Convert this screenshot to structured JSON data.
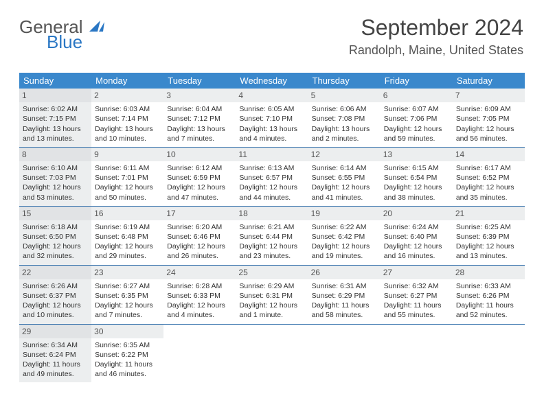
{
  "logo": {
    "line1": "General",
    "line2": "Blue"
  },
  "title": {
    "month": "September 2024",
    "location": "Randolph, Maine, United States"
  },
  "colors": {
    "header_bg": "#3a88cc",
    "week_border": "#2a6aa8",
    "sunday_bg": "#eceeef",
    "daynum_bg": "#eceeef",
    "text": "#333333",
    "title_color": "#444444",
    "logo_blue": "#2a77c4"
  },
  "font_family": "Arial",
  "weekdays": [
    "Sunday",
    "Monday",
    "Tuesday",
    "Wednesday",
    "Thursday",
    "Friday",
    "Saturday"
  ],
  "weeks": [
    [
      {
        "n": "1",
        "sr": "6:02 AM",
        "ss": "7:15 PM",
        "dl": "13 hours and 13 minutes."
      },
      {
        "n": "2",
        "sr": "6:03 AM",
        "ss": "7:14 PM",
        "dl": "13 hours and 10 minutes."
      },
      {
        "n": "3",
        "sr": "6:04 AM",
        "ss": "7:12 PM",
        "dl": "13 hours and 7 minutes."
      },
      {
        "n": "4",
        "sr": "6:05 AM",
        "ss": "7:10 PM",
        "dl": "13 hours and 4 minutes."
      },
      {
        "n": "5",
        "sr": "6:06 AM",
        "ss": "7:08 PM",
        "dl": "13 hours and 2 minutes."
      },
      {
        "n": "6",
        "sr": "6:07 AM",
        "ss": "7:06 PM",
        "dl": "12 hours and 59 minutes."
      },
      {
        "n": "7",
        "sr": "6:09 AM",
        "ss": "7:05 PM",
        "dl": "12 hours and 56 minutes."
      }
    ],
    [
      {
        "n": "8",
        "sr": "6:10 AM",
        "ss": "7:03 PM",
        "dl": "12 hours and 53 minutes."
      },
      {
        "n": "9",
        "sr": "6:11 AM",
        "ss": "7:01 PM",
        "dl": "12 hours and 50 minutes."
      },
      {
        "n": "10",
        "sr": "6:12 AM",
        "ss": "6:59 PM",
        "dl": "12 hours and 47 minutes."
      },
      {
        "n": "11",
        "sr": "6:13 AM",
        "ss": "6:57 PM",
        "dl": "12 hours and 44 minutes."
      },
      {
        "n": "12",
        "sr": "6:14 AM",
        "ss": "6:55 PM",
        "dl": "12 hours and 41 minutes."
      },
      {
        "n": "13",
        "sr": "6:15 AM",
        "ss": "6:54 PM",
        "dl": "12 hours and 38 minutes."
      },
      {
        "n": "14",
        "sr": "6:17 AM",
        "ss": "6:52 PM",
        "dl": "12 hours and 35 minutes."
      }
    ],
    [
      {
        "n": "15",
        "sr": "6:18 AM",
        "ss": "6:50 PM",
        "dl": "12 hours and 32 minutes."
      },
      {
        "n": "16",
        "sr": "6:19 AM",
        "ss": "6:48 PM",
        "dl": "12 hours and 29 minutes."
      },
      {
        "n": "17",
        "sr": "6:20 AM",
        "ss": "6:46 PM",
        "dl": "12 hours and 26 minutes."
      },
      {
        "n": "18",
        "sr": "6:21 AM",
        "ss": "6:44 PM",
        "dl": "12 hours and 23 minutes."
      },
      {
        "n": "19",
        "sr": "6:22 AM",
        "ss": "6:42 PM",
        "dl": "12 hours and 19 minutes."
      },
      {
        "n": "20",
        "sr": "6:24 AM",
        "ss": "6:40 PM",
        "dl": "12 hours and 16 minutes."
      },
      {
        "n": "21",
        "sr": "6:25 AM",
        "ss": "6:39 PM",
        "dl": "12 hours and 13 minutes."
      }
    ],
    [
      {
        "n": "22",
        "sr": "6:26 AM",
        "ss": "6:37 PM",
        "dl": "12 hours and 10 minutes."
      },
      {
        "n": "23",
        "sr": "6:27 AM",
        "ss": "6:35 PM",
        "dl": "12 hours and 7 minutes."
      },
      {
        "n": "24",
        "sr": "6:28 AM",
        "ss": "6:33 PM",
        "dl": "12 hours and 4 minutes."
      },
      {
        "n": "25",
        "sr": "6:29 AM",
        "ss": "6:31 PM",
        "dl": "12 hours and 1 minute."
      },
      {
        "n": "26",
        "sr": "6:31 AM",
        "ss": "6:29 PM",
        "dl": "11 hours and 58 minutes."
      },
      {
        "n": "27",
        "sr": "6:32 AM",
        "ss": "6:27 PM",
        "dl": "11 hours and 55 minutes."
      },
      {
        "n": "28",
        "sr": "6:33 AM",
        "ss": "6:26 PM",
        "dl": "11 hours and 52 minutes."
      }
    ],
    [
      {
        "n": "29",
        "sr": "6:34 AM",
        "ss": "6:24 PM",
        "dl": "11 hours and 49 minutes."
      },
      {
        "n": "30",
        "sr": "6:35 AM",
        "ss": "6:22 PM",
        "dl": "11 hours and 46 minutes."
      },
      null,
      null,
      null,
      null,
      null
    ]
  ],
  "labels": {
    "sunrise": "Sunrise:",
    "sunset": "Sunset:",
    "daylight": "Daylight:"
  }
}
